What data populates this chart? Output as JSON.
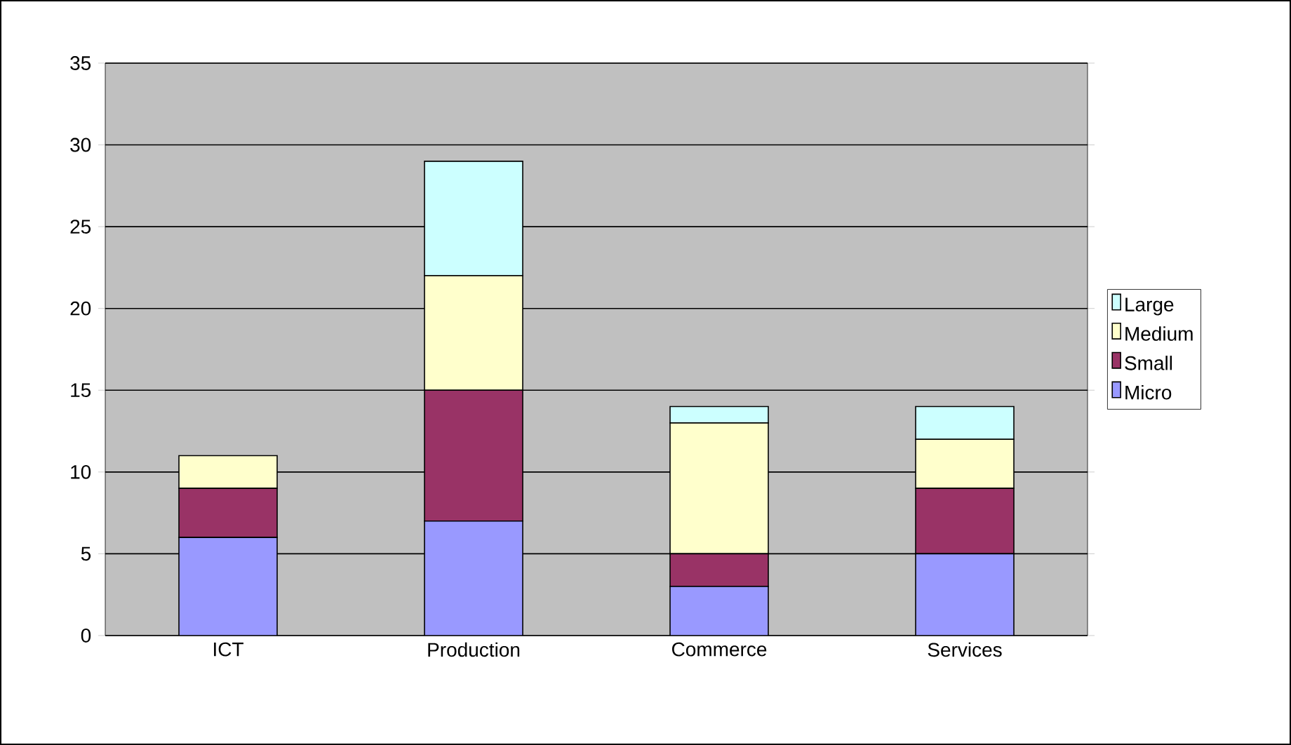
{
  "chart_data": {
    "type": "bar",
    "stacked": true,
    "categories": [
      "ICT",
      "Production",
      "Commerce",
      "Services"
    ],
    "series": [
      {
        "name": "Micro",
        "color": "#9999ff",
        "values": [
          6,
          7,
          3,
          5
        ]
      },
      {
        "name": "Small",
        "color": "#993366",
        "values": [
          3,
          8,
          2,
          4
        ]
      },
      {
        "name": "Medium",
        "color": "#ffffcc",
        "values": [
          2,
          7,
          8,
          3
        ]
      },
      {
        "name": "Large",
        "color": "#ccffff",
        "values": [
          0,
          7,
          1,
          2
        ]
      }
    ],
    "ylim": [
      0,
      35
    ],
    "yticks": [
      0,
      5,
      10,
      15,
      20,
      25,
      30,
      35
    ],
    "grid": "y",
    "legend": "right"
  }
}
